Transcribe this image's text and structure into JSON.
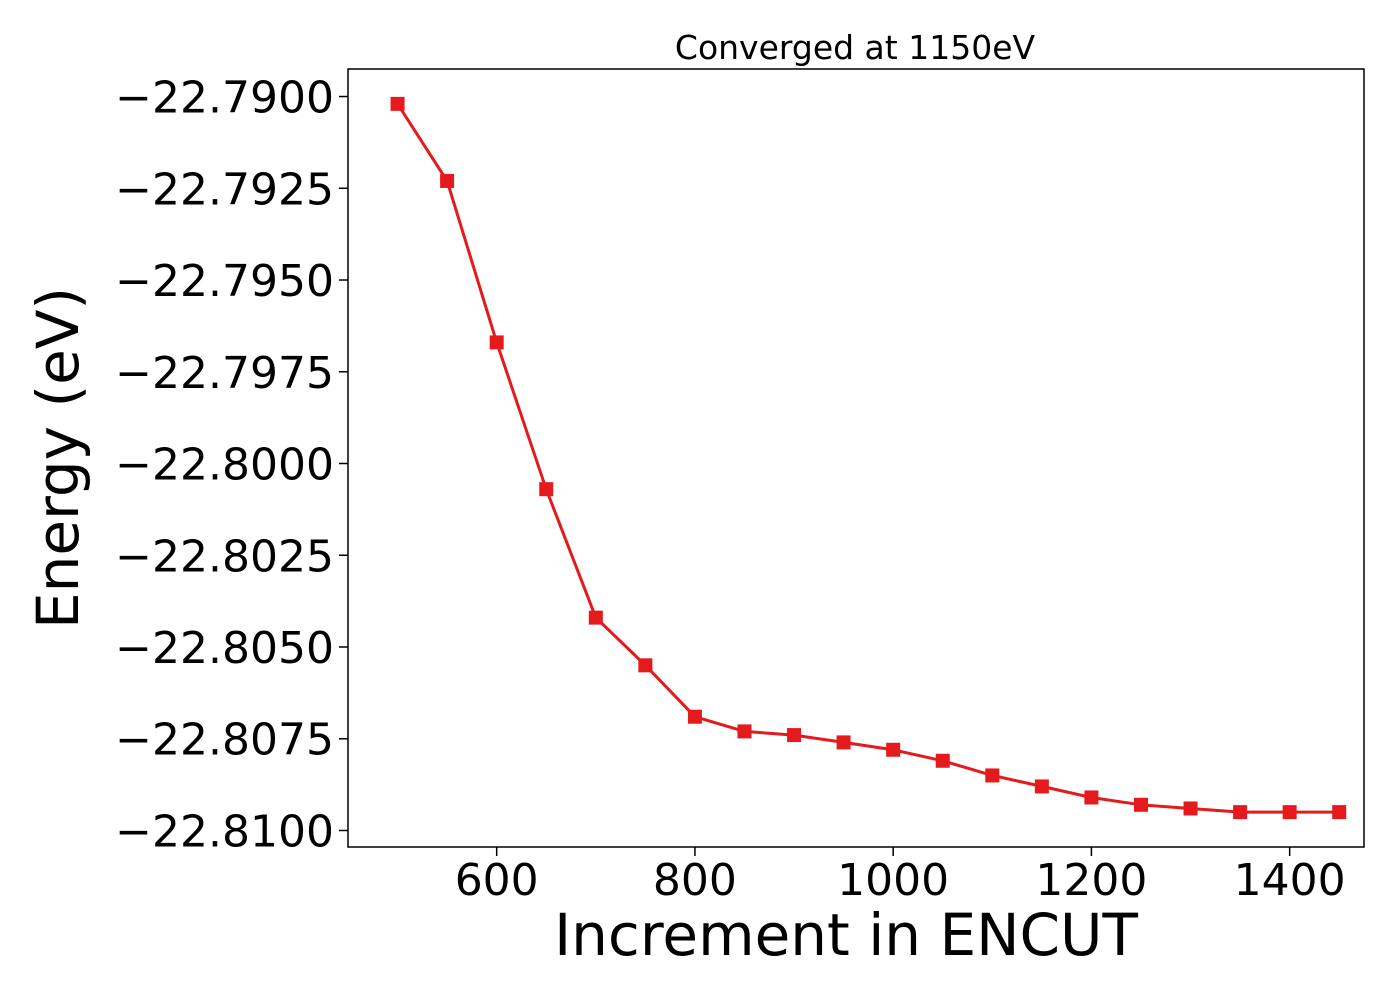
{
  "chart_data": {
    "type": "line",
    "title": "Converged at 1150eV",
    "xlabel": "Increment in ENCUT",
    "ylabel": "Energy (eV)",
    "xlim": [
      450,
      1475
    ],
    "ylim": [
      -22.81045,
      -22.78925
    ],
    "x_ticks": [
      600,
      800,
      1000,
      1200,
      1400
    ],
    "x_tick_labels": [
      "600",
      "800",
      "1000",
      "1200",
      "1400"
    ],
    "y_ticks": [
      -22.79,
      -22.7925,
      -22.795,
      -22.7975,
      -22.8,
      -22.8025,
      -22.805,
      -22.8075,
      -22.81
    ],
    "y_tick_labels": [
      "−22.7900",
      "−22.7925",
      "−22.7950",
      "−22.7975",
      "−22.8000",
      "−22.8025",
      "−22.8050",
      "−22.8075",
      "−22.8100"
    ],
    "grid": false,
    "legend": "none",
    "series": [
      {
        "color": "#e41a1c",
        "marker": "square",
        "x": [
          500,
          550,
          600,
          650,
          700,
          750,
          800,
          850,
          900,
          950,
          1000,
          1050,
          1100,
          1150,
          1200,
          1250,
          1300,
          1350,
          1400,
          1450
        ],
        "y": [
          -22.7902,
          -22.7923,
          -22.7967,
          -22.8007,
          -22.8042,
          -22.8055,
          -22.8069,
          -22.8073,
          -22.8074,
          -22.8076,
          -22.8078,
          -22.8081,
          -22.8085,
          -22.8088,
          -22.8091,
          -22.8093,
          -22.8094,
          -22.8095,
          -22.8095,
          -22.8095
        ]
      }
    ]
  }
}
